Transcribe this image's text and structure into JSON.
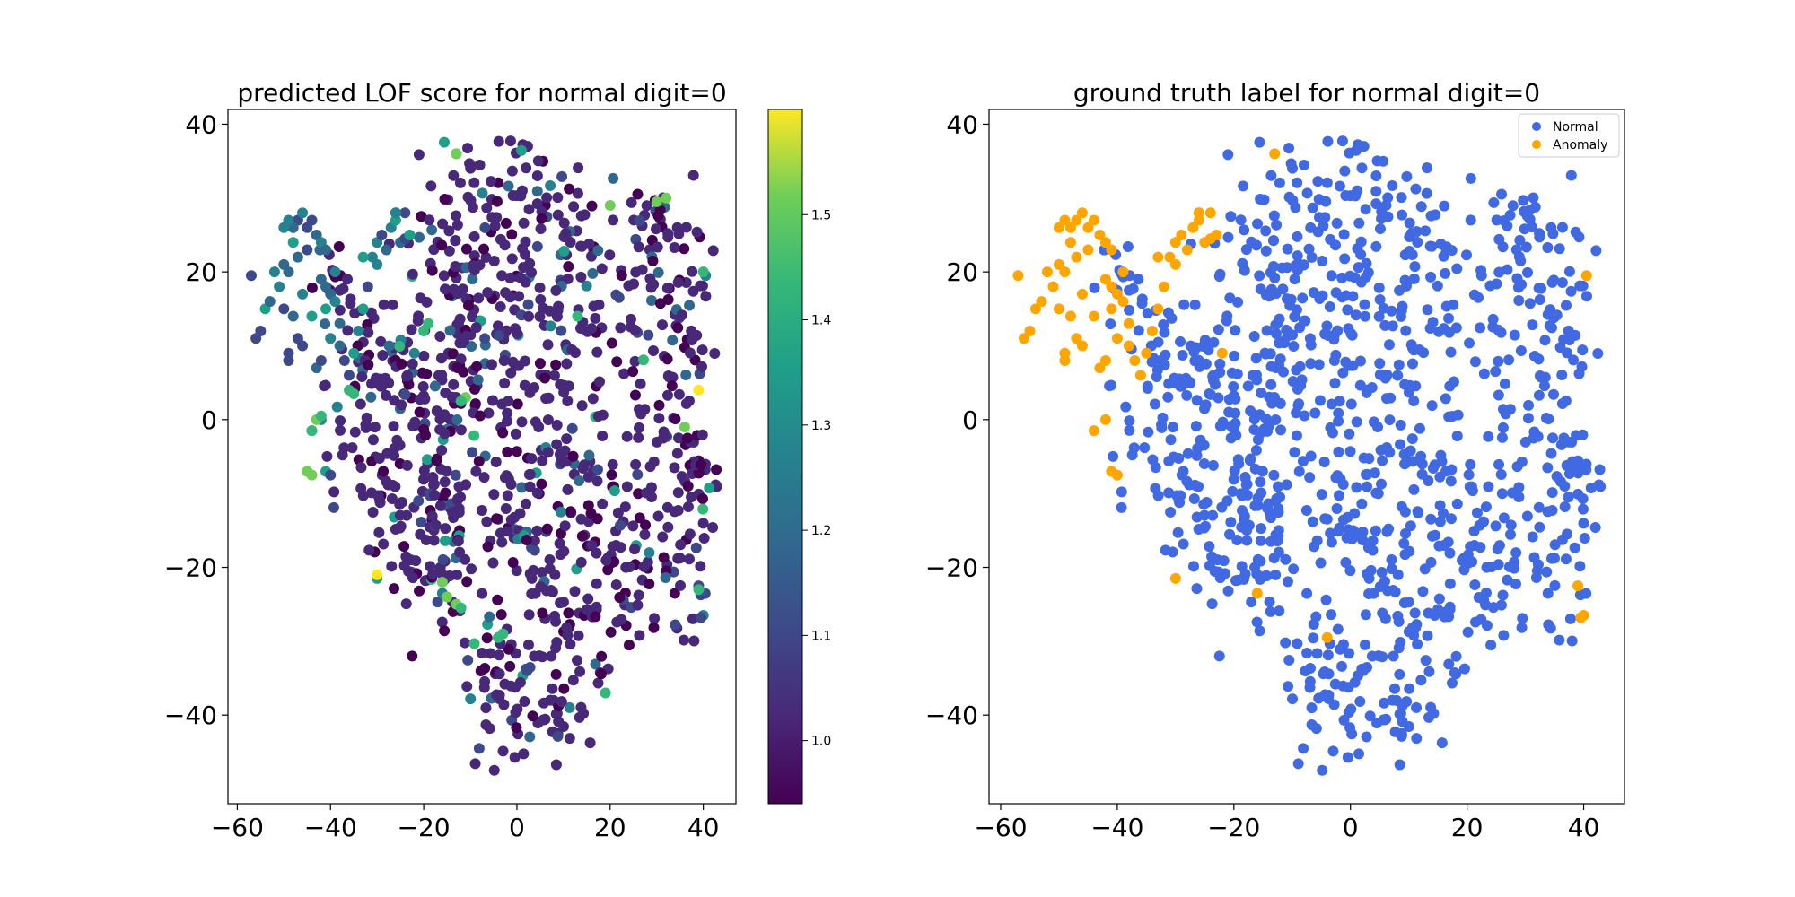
{
  "chart_data": [
    {
      "type": "scatter",
      "title": "predicted LOF score for normal digit=0",
      "xlabel": "",
      "ylabel": "",
      "xlim": [
        -62,
        47
      ],
      "ylim": [
        -52,
        42
      ],
      "xticks": [
        -60,
        -40,
        -20,
        0,
        20,
        40
      ],
      "yticks": [
        -40,
        -20,
        0,
        20,
        40
      ],
      "xtick_labels": [
        "−60",
        "−40",
        "−20",
        "0",
        "20",
        "40"
      ],
      "ytick_labels": [
        "−40",
        "−20",
        "0",
        "20",
        "40"
      ],
      "colormap": "viridis",
      "colorbar": {
        "range": [
          0.94,
          1.6
        ],
        "ticks": [
          1.0,
          1.1,
          1.2,
          1.3,
          1.4,
          1.5
        ],
        "tick_labels": [
          "1.0",
          "1.1",
          "1.2",
          "1.3",
          "1.4",
          "1.5"
        ]
      },
      "grid": false,
      "points_note": "approx. 1000 t-SNE embedded samples colored by LOF score"
    },
    {
      "type": "scatter",
      "title": "ground truth label for normal digit=0",
      "xlabel": "",
      "ylabel": "",
      "xlim": [
        -62,
        47
      ],
      "ylim": [
        -52,
        42
      ],
      "xticks": [
        -60,
        -40,
        -20,
        0,
        20,
        40
      ],
      "yticks": [
        -40,
        -20,
        0,
        20,
        40
      ],
      "xtick_labels": [
        "−60",
        "−40",
        "−20",
        "0",
        "20",
        "40"
      ],
      "ytick_labels": [
        "−40",
        "−20",
        "0",
        "20",
        "40"
      ],
      "legend": {
        "placement": "top-right",
        "entries": [
          "Normal",
          "Anomaly"
        ]
      },
      "series": [
        {
          "name": "Normal",
          "color": "#4169e1"
        },
        {
          "name": "Anomaly",
          "color": "#ffa500"
        }
      ],
      "grid": false
    }
  ],
  "anomaly_points": [
    [
      -57,
      19.5
    ],
    [
      -56,
      11
    ],
    [
      -55,
      12
    ],
    [
      -54,
      15
    ],
    [
      -53,
      16
    ],
    [
      -52,
      20
    ],
    [
      -51,
      18
    ],
    [
      -50,
      21
    ],
    [
      -50,
      15
    ],
    [
      -49,
      20
    ],
    [
      -49,
      9
    ],
    [
      -49,
      8
    ],
    [
      -48,
      14
    ],
    [
      -48,
      24
    ],
    [
      -47,
      22
    ],
    [
      -47,
      11
    ],
    [
      -46,
      10
    ],
    [
      -46,
      17
    ],
    [
      -45,
      23
    ],
    [
      -44,
      14
    ],
    [
      -43,
      7
    ],
    [
      -42,
      8
    ],
    [
      -42,
      19
    ],
    [
      -41,
      18
    ],
    [
      -41,
      15
    ],
    [
      -40,
      11
    ],
    [
      -40,
      17
    ],
    [
      -39,
      20
    ],
    [
      -39,
      16
    ],
    [
      -38,
      13
    ],
    [
      -38,
      10
    ],
    [
      -37,
      8
    ],
    [
      -36,
      6
    ],
    [
      -35,
      9
    ],
    [
      -34,
      12
    ],
    [
      -33,
      15
    ],
    [
      -32,
      18
    ],
    [
      -31,
      22
    ],
    [
      -30,
      24
    ],
    [
      -29,
      25
    ],
    [
      -28,
      23
    ],
    [
      -27,
      26
    ],
    [
      -26,
      28
    ],
    [
      -25,
      24
    ],
    [
      -24,
      24.5
    ],
    [
      -24,
      28
    ],
    [
      -23,
      25
    ],
    [
      -26,
      27
    ],
    [
      -33,
      22
    ],
    [
      -30,
      21
    ],
    [
      -47,
      27
    ],
    [
      -46,
      28
    ],
    [
      -45,
      26
    ],
    [
      -44,
      27
    ],
    [
      -43,
      25
    ],
    [
      -42,
      24
    ],
    [
      -41,
      23
    ],
    [
      -48,
      26
    ],
    [
      -49,
      27
    ],
    [
      -50,
      26
    ],
    [
      -44,
      -1.5
    ],
    [
      -42,
      0
    ],
    [
      -41,
      -7
    ],
    [
      -40,
      -7.5
    ],
    [
      -30,
      -21.5
    ],
    [
      -22,
      9
    ],
    [
      -16,
      -23.5
    ],
    [
      -13,
      36
    ],
    [
      -4,
      -29.5
    ],
    [
      39,
      -22.5
    ],
    [
      40,
      -26.5
    ],
    [
      39.5,
      -26.8
    ],
    [
      40.5,
      19.5
    ],
    [
      -26,
      28
    ]
  ],
  "bright_points": [
    [
      39,
      4
    ],
    [
      -30,
      -21
    ],
    [
      -4,
      -29.5
    ],
    [
      -3,
      -29
    ],
    [
      -13,
      -25
    ],
    [
      -12,
      -25.5
    ],
    [
      -16,
      -22
    ],
    [
      -15,
      -24
    ],
    [
      -44,
      -1.5
    ],
    [
      -43,
      0
    ],
    [
      -35,
      3.5
    ],
    [
      -36,
      4
    ],
    [
      -11,
      3
    ],
    [
      -12,
      2.5
    ],
    [
      -20,
      12
    ],
    [
      -19,
      13
    ],
    [
      20,
      29
    ],
    [
      32,
      30
    ],
    [
      30,
      29.5
    ],
    [
      -13,
      36
    ],
    [
      -42,
      0.5
    ],
    [
      -45,
      -7
    ],
    [
      -44,
      -7.5
    ],
    [
      13,
      14
    ],
    [
      19,
      -37
    ],
    [
      36,
      -1
    ],
    [
      39,
      -23
    ],
    [
      40,
      20
    ]
  ]
}
